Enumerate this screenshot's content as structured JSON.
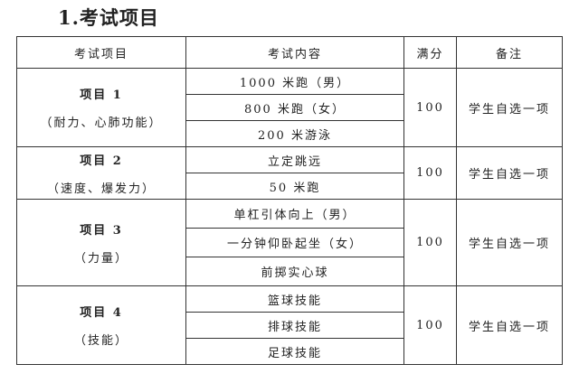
{
  "title": "1.考试项目",
  "headers": [
    "考试项目",
    "考试内容",
    "满分",
    "备注"
  ],
  "groups": [
    {
      "name": "项目 1",
      "desc": "（耐力、心肺功能）",
      "items": [
        "1000 米跑（男）",
        "800 米跑（女）",
        "200 米游泳"
      ],
      "score": "100",
      "note": "学生自选一项"
    },
    {
      "name": "项目 2",
      "desc": "（速度、爆发力）",
      "items": [
        "立定跳远",
        "50 米跑"
      ],
      "score": "100",
      "note": "学生自选一项"
    },
    {
      "name": "项目 3",
      "desc": "（力量）",
      "items": [
        "单杠引体向上（男）",
        "一分钟仰卧起坐（女）",
        "前掷实心球"
      ],
      "score": "100",
      "note": "学生自选一项"
    },
    {
      "name": "项目 4",
      "desc": "（技能）",
      "items": [
        "篮球技能",
        "排球技能",
        "足球技能"
      ],
      "score": "100",
      "note": "学生自选一项"
    }
  ]
}
